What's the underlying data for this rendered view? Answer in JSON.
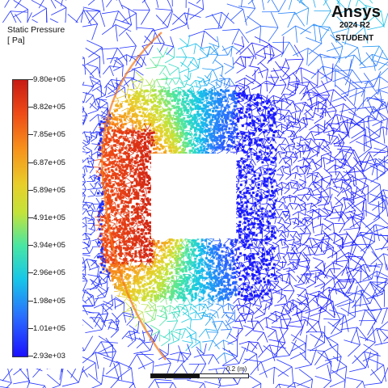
{
  "logo": {
    "brand": "Ansys",
    "version": "2024 R2",
    "edition": "STUDENT"
  },
  "legend": {
    "title": "Static Pressure",
    "unit": "[ Pa]",
    "labels": [
      "9.80e+05",
      "8.82e+05",
      "7.85e+05",
      "6.87e+05",
      "5.89e+05",
      "4.91e+05",
      "3.94e+05",
      "2.96e+05",
      "1.98e+05",
      "1.01e+05",
      "2.93e+03"
    ]
  },
  "scale": {
    "label": "0.2 (m)"
  },
  "colors": {
    "max": "#c81a14",
    "mid": "#c3e33a",
    "min": "#1b10ff",
    "background": "#ffffff",
    "obstacle": "#ffffff"
  }
}
